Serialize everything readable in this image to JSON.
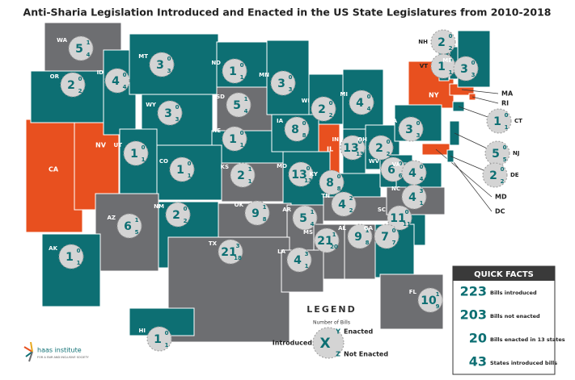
{
  "title": "Anti-Sharia Legislation Introduced and Enacted in the US State Legislatures from 2010-2018",
  "states": [
    {
      "label": "WA",
      "introduced": 5,
      "enacted": 1,
      "not_enacted": 4,
      "color": "#6d6e71"
    },
    {
      "label": "OR",
      "introduced": 2,
      "enacted": 0,
      "not_enacted": 2,
      "color": "#0d6f73"
    },
    {
      "label": "ID",
      "introduced": 4,
      "enacted": 0,
      "not_enacted": 4,
      "color": "#0d6f73"
    },
    {
      "label": "MT",
      "introduced": 3,
      "enacted": 0,
      "not_enacted": 3,
      "color": "#0d6f73"
    },
    {
      "label": "WY",
      "introduced": 3,
      "enacted": 0,
      "not_enacted": 3,
      "color": "#0d6f73"
    },
    {
      "label": "ND",
      "introduced": 1,
      "enacted": 0,
      "not_enacted": 1,
      "color": "#0d6f73"
    },
    {
      "label": "SD",
      "introduced": 5,
      "enacted": 1,
      "not_enacted": 4,
      "color": "#6d6e71"
    },
    {
      "label": "MN",
      "introduced": 3,
      "enacted": 0,
      "not_enacted": 3,
      "color": "#0d6f73"
    },
    {
      "label": "WI",
      "introduced": 2,
      "enacted": 0,
      "not_enacted": 2,
      "color": "#0d6f73"
    },
    {
      "label": "MI",
      "introduced": 4,
      "enacted": 0,
      "not_enacted": 4,
      "color": "#0d6f73"
    },
    {
      "label": "NE",
      "introduced": 1,
      "enacted": 0,
      "not_enacted": 1,
      "color": "#0d6f73"
    },
    {
      "label": "IA",
      "introduced": 8,
      "enacted": 0,
      "not_enacted": 8,
      "color": "#0d6f73"
    },
    {
      "label": "UT",
      "introduced": 1,
      "enacted": 0,
      "not_enacted": 1,
      "color": "#0d6f73"
    },
    {
      "label": "CO",
      "introduced": 1,
      "enacted": 0,
      "not_enacted": 1,
      "color": "#0d6f73"
    },
    {
      "label": "KS",
      "introduced": 2,
      "enacted": 1,
      "not_enacted": 1,
      "color": "#6d6e71"
    },
    {
      "label": "MO",
      "introduced": 13,
      "enacted": 0,
      "not_enacted": 13,
      "color": "#0d6f73"
    },
    {
      "label": "IN",
      "introduced": 13,
      "enacted": 0,
      "not_enacted": 13,
      "color": "#0d6f73"
    },
    {
      "label": "OH",
      "introduced": 2,
      "enacted": 0,
      "not_enacted": 2,
      "color": "#0d6f73"
    },
    {
      "label": "PA",
      "introduced": 3,
      "enacted": 0,
      "not_enacted": 3,
      "color": "#0d6f73"
    },
    {
      "label": "KY",
      "introduced": 8,
      "enacted": 0,
      "not_enacted": 8,
      "color": "#0d6f73"
    },
    {
      "label": "WV",
      "introduced": 6,
      "enacted": 0,
      "not_enacted": 6,
      "color": "#0d6f73"
    },
    {
      "label": "VA",
      "introduced": 4,
      "enacted": 0,
      "not_enacted": 4,
      "color": "#0d6f73"
    },
    {
      "label": "AZ",
      "introduced": 6,
      "enacted": 1,
      "not_enacted": 5,
      "color": "#6d6e71"
    },
    {
      "label": "NM",
      "introduced": 2,
      "enacted": 0,
      "not_enacted": 2,
      "color": "#0d6f73"
    },
    {
      "label": "OK",
      "introduced": 9,
      "enacted": 1,
      "not_enacted": 8,
      "color": "#6d6e71"
    },
    {
      "label": "AR",
      "introduced": 5,
      "enacted": 1,
      "not_enacted": 4,
      "color": "#6d6e71"
    },
    {
      "label": "TN",
      "introduced": 4,
      "enacted": 2,
      "not_enacted": 2,
      "color": "#6d6e71"
    },
    {
      "label": "NC",
      "introduced": 4,
      "enacted": 3,
      "not_enacted": 1,
      "color": "#6d6e71"
    },
    {
      "label": "SC",
      "introduced": 11,
      "enacted": 0,
      "not_enacted": 11,
      "color": "#0d6f73"
    },
    {
      "label": "TX",
      "introduced": 21,
      "enacted": 3,
      "not_enacted": 18,
      "color": "#6d6e71"
    },
    {
      "label": "MS",
      "introduced": 21,
      "enacted": 1,
      "not_enacted": 20,
      "color": "#6d6e71"
    },
    {
      "label": "AL",
      "introduced": 9,
      "enacted": 1,
      "not_enacted": 8,
      "color": "#6d6e71"
    },
    {
      "label": "GA",
      "introduced": 7,
      "enacted": 0,
      "not_enacted": 7,
      "color": "#0d6f73"
    },
    {
      "label": "LA",
      "introduced": 4,
      "enacted": 3,
      "not_enacted": 1,
      "color": "#6d6e71"
    },
    {
      "label": "FL",
      "introduced": 10,
      "enacted": 1,
      "not_enacted": 9,
      "color": "#6d6e71"
    },
    {
      "label": "AK",
      "introduced": 1,
      "enacted": 0,
      "not_enacted": 1,
      "color": "#0d6f73"
    },
    {
      "label": "HI",
      "introduced": 1,
      "enacted": 0,
      "not_enacted": 1,
      "color": "#0d6f73"
    },
    {
      "label": "NH",
      "introduced": 2,
      "enacted": 0,
      "not_enacted": 2,
      "color": "#0d6f73"
    },
    {
      "label": "VT",
      "introduced": 1,
      "enacted": 0,
      "not_enacted": 1,
      "color": "#0d6f73"
    },
    {
      "label": "ME",
      "introduced": 3,
      "enacted": 0,
      "not_enacted": 3,
      "color": "#0d6f73"
    },
    {
      "label": "CT",
      "introduced": 1,
      "enacted": 0,
      "not_enacted": 1,
      "color": "#0d6f73"
    },
    {
      "label": "NJ",
      "introduced": 5,
      "enacted": 0,
      "not_enacted": 5,
      "color": "#0d6f73"
    },
    {
      "label": "DE",
      "introduced": 2,
      "enacted": 0,
      "not_enacted": 2,
      "color": "#0d6f73"
    }
  ],
  "other_states": [
    {
      "label": "CA",
      "color": "#e8501f"
    },
    {
      "label": "NV",
      "color": "#e8501f"
    },
    {
      "label": "IL",
      "color": "#e8501f"
    },
    {
      "label": "NY",
      "color": "#e8501f"
    },
    {
      "label": "MA",
      "color": "#e8501f"
    },
    {
      "label": "RI",
      "color": "#e8501f"
    },
    {
      "label": "MD",
      "color": "#e8501f"
    },
    {
      "label": "DC",
      "color": "#e8501f"
    }
  ],
  "legend": {
    "title": "LEGEND",
    "subtitle": "Number of Bills",
    "introduced": "Introduced",
    "x": "X",
    "y": "Y",
    "enacted": "Enacted",
    "z": "Z",
    "not_enacted": "Not Enacted"
  },
  "quick_facts": {
    "title": "QUICK FACTS",
    "rows": [
      {
        "value": 223,
        "text": "Bills introduced"
      },
      {
        "value": 203,
        "text": "Bills not enacted"
      },
      {
        "value": 20,
        "text": "Bills enacted in 13 states"
      },
      {
        "value": 43,
        "text": "States introduced bills"
      }
    ]
  },
  "logo": {
    "name": "haas institute",
    "tagline": "FOR A FAIR AND INCLUSIVE SOCIETY"
  }
}
